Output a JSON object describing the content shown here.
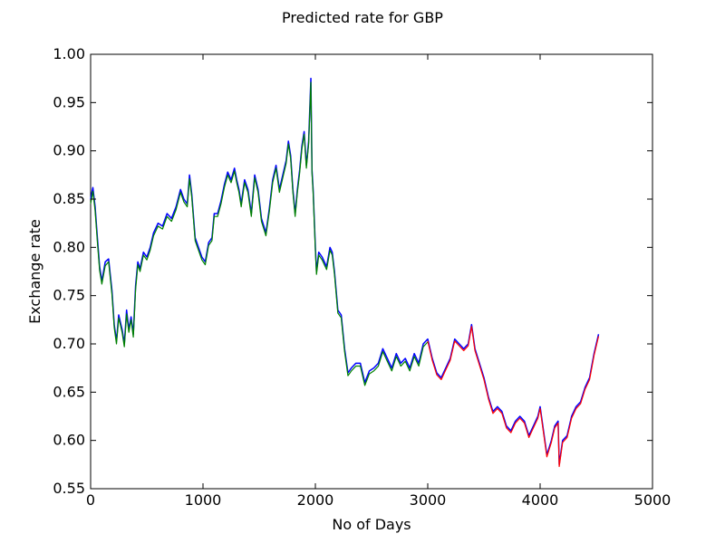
{
  "chart_data": {
    "type": "line",
    "title": "Predicted rate for GBP",
    "xlabel": "No of Days",
    "ylabel": "Exchange rate",
    "xlim": [
      0,
      5000
    ],
    "ylim": [
      0.55,
      1.0
    ],
    "xticks": [
      0,
      1000,
      2000,
      3000,
      4000,
      5000
    ],
    "yticks": [
      0.55,
      0.6,
      0.65,
      0.7,
      0.75,
      0.8,
      0.85,
      0.9,
      0.95,
      1.0
    ],
    "xtick_labels": [
      "0",
      "1000",
      "2000",
      "3000",
      "4000",
      "5000"
    ],
    "ytick_labels": [
      "0.55",
      "0.60",
      "0.65",
      "0.70",
      "0.75",
      "0.80",
      "0.85",
      "0.90",
      "0.95",
      "1.00"
    ],
    "grid": false,
    "legend": "none",
    "series": [
      {
        "color": "#0000ff",
        "values": [
          [
            0,
            0.85
          ],
          [
            20,
            0.862
          ],
          [
            40,
            0.842
          ],
          [
            60,
            0.81
          ],
          [
            80,
            0.78
          ],
          [
            100,
            0.765
          ],
          [
            130,
            0.785
          ],
          [
            160,
            0.788
          ],
          [
            190,
            0.755
          ],
          [
            210,
            0.72
          ],
          [
            230,
            0.703
          ],
          [
            250,
            0.73
          ],
          [
            280,
            0.715
          ],
          [
            300,
            0.7
          ],
          [
            320,
            0.735
          ],
          [
            340,
            0.715
          ],
          [
            360,
            0.728
          ],
          [
            380,
            0.71
          ],
          [
            400,
            0.76
          ],
          [
            420,
            0.785
          ],
          [
            440,
            0.778
          ],
          [
            470,
            0.795
          ],
          [
            500,
            0.79
          ],
          [
            530,
            0.8
          ],
          [
            560,
            0.815
          ],
          [
            600,
            0.825
          ],
          [
            640,
            0.822
          ],
          [
            680,
            0.835
          ],
          [
            720,
            0.83
          ],
          [
            760,
            0.842
          ],
          [
            800,
            0.86
          ],
          [
            830,
            0.85
          ],
          [
            860,
            0.845
          ],
          [
            880,
            0.875
          ],
          [
            900,
            0.855
          ],
          [
            930,
            0.81
          ],
          [
            960,
            0.8
          ],
          [
            990,
            0.79
          ],
          [
            1020,
            0.785
          ],
          [
            1050,
            0.805
          ],
          [
            1080,
            0.81
          ],
          [
            1100,
            0.835
          ],
          [
            1130,
            0.835
          ],
          [
            1160,
            0.848
          ],
          [
            1190,
            0.865
          ],
          [
            1220,
            0.878
          ],
          [
            1250,
            0.87
          ],
          [
            1280,
            0.882
          ],
          [
            1300,
            0.87
          ],
          [
            1320,
            0.86
          ],
          [
            1340,
            0.845
          ],
          [
            1370,
            0.87
          ],
          [
            1400,
            0.86
          ],
          [
            1430,
            0.835
          ],
          [
            1460,
            0.875
          ],
          [
            1490,
            0.86
          ],
          [
            1520,
            0.83
          ],
          [
            1560,
            0.815
          ],
          [
            1590,
            0.84
          ],
          [
            1620,
            0.87
          ],
          [
            1650,
            0.885
          ],
          [
            1680,
            0.86
          ],
          [
            1710,
            0.875
          ],
          [
            1740,
            0.89
          ],
          [
            1760,
            0.91
          ],
          [
            1780,
            0.895
          ],
          [
            1800,
            0.86
          ],
          [
            1820,
            0.835
          ],
          [
            1840,
            0.86
          ],
          [
            1860,
            0.88
          ],
          [
            1880,
            0.905
          ],
          [
            1900,
            0.92
          ],
          [
            1920,
            0.885
          ],
          [
            1940,
            0.91
          ],
          [
            1960,
            0.975
          ],
          [
            1970,
            0.88
          ],
          [
            1980,
            0.86
          ],
          [
            2000,
            0.8
          ],
          [
            2010,
            0.775
          ],
          [
            2030,
            0.795
          ],
          [
            2060,
            0.79
          ],
          [
            2100,
            0.78
          ],
          [
            2130,
            0.8
          ],
          [
            2150,
            0.795
          ],
          [
            2170,
            0.775
          ],
          [
            2200,
            0.735
          ],
          [
            2230,
            0.73
          ],
          [
            2260,
            0.695
          ],
          [
            2290,
            0.67
          ],
          [
            2320,
            0.675
          ],
          [
            2360,
            0.68
          ],
          [
            2400,
            0.68
          ],
          [
            2440,
            0.66
          ],
          [
            2480,
            0.672
          ],
          [
            2520,
            0.675
          ],
          [
            2560,
            0.68
          ],
          [
            2600,
            0.695
          ],
          [
            2640,
            0.685
          ],
          [
            2680,
            0.675
          ],
          [
            2720,
            0.69
          ],
          [
            2760,
            0.68
          ],
          [
            2800,
            0.685
          ],
          [
            2840,
            0.675
          ],
          [
            2880,
            0.69
          ],
          [
            2920,
            0.68
          ],
          [
            2960,
            0.7
          ],
          [
            3000,
            0.705
          ],
          [
            3040,
            0.685
          ],
          [
            3080,
            0.67
          ],
          [
            3120,
            0.665
          ],
          [
            3160,
            0.675
          ],
          [
            3200,
            0.685
          ],
          [
            3240,
            0.705
          ],
          [
            3280,
            0.7
          ],
          [
            3320,
            0.695
          ],
          [
            3360,
            0.7
          ],
          [
            3390,
            0.72
          ],
          [
            3420,
            0.695
          ],
          [
            3460,
            0.68
          ],
          [
            3500,
            0.665
          ],
          [
            3540,
            0.645
          ],
          [
            3580,
            0.63
          ],
          [
            3620,
            0.635
          ],
          [
            3660,
            0.63
          ],
          [
            3700,
            0.615
          ],
          [
            3740,
            0.61
          ],
          [
            3780,
            0.62
          ],
          [
            3820,
            0.625
          ],
          [
            3860,
            0.62
          ],
          [
            3900,
            0.605
          ],
          [
            3940,
            0.615
          ],
          [
            3980,
            0.625
          ],
          [
            4000,
            0.635
          ],
          [
            4030,
            0.61
          ],
          [
            4060,
            0.585
          ],
          [
            4100,
            0.6
          ],
          [
            4130,
            0.615
          ],
          [
            4160,
            0.62
          ],
          [
            4170,
            0.575
          ],
          [
            4200,
            0.6
          ],
          [
            4240,
            0.605
          ],
          [
            4280,
            0.625
          ],
          [
            4320,
            0.635
          ],
          [
            4360,
            0.64
          ],
          [
            4400,
            0.655
          ],
          [
            4440,
            0.665
          ],
          [
            4480,
            0.69
          ],
          [
            4520,
            0.71
          ]
        ]
      },
      {
        "color": "#008000",
        "values": [
          [
            0,
            0.845
          ],
          [
            20,
            0.858
          ],
          [
            40,
            0.838
          ],
          [
            60,
            0.806
          ],
          [
            80,
            0.776
          ],
          [
            100,
            0.762
          ],
          [
            130,
            0.781
          ],
          [
            160,
            0.785
          ],
          [
            190,
            0.751
          ],
          [
            210,
            0.717
          ],
          [
            230,
            0.7
          ],
          [
            250,
            0.727
          ],
          [
            280,
            0.712
          ],
          [
            300,
            0.697
          ],
          [
            320,
            0.731
          ],
          [
            340,
            0.712
          ],
          [
            360,
            0.725
          ],
          [
            380,
            0.707
          ],
          [
            400,
            0.756
          ],
          [
            420,
            0.782
          ],
          [
            440,
            0.775
          ],
          [
            470,
            0.792
          ],
          [
            500,
            0.787
          ],
          [
            530,
            0.797
          ],
          [
            560,
            0.812
          ],
          [
            600,
            0.822
          ],
          [
            640,
            0.819
          ],
          [
            680,
            0.832
          ],
          [
            720,
            0.827
          ],
          [
            760,
            0.839
          ],
          [
            800,
            0.857
          ],
          [
            830,
            0.847
          ],
          [
            860,
            0.842
          ],
          [
            880,
            0.871
          ],
          [
            900,
            0.852
          ],
          [
            930,
            0.807
          ],
          [
            960,
            0.797
          ],
          [
            990,
            0.787
          ],
          [
            1020,
            0.782
          ],
          [
            1050,
            0.802
          ],
          [
            1080,
            0.807
          ],
          [
            1100,
            0.832
          ],
          [
            1130,
            0.832
          ],
          [
            1160,
            0.845
          ],
          [
            1190,
            0.862
          ],
          [
            1220,
            0.875
          ],
          [
            1250,
            0.867
          ],
          [
            1280,
            0.879
          ],
          [
            1300,
            0.867
          ],
          [
            1320,
            0.857
          ],
          [
            1340,
            0.842
          ],
          [
            1370,
            0.867
          ],
          [
            1400,
            0.857
          ],
          [
            1430,
            0.832
          ],
          [
            1460,
            0.872
          ],
          [
            1490,
            0.857
          ],
          [
            1520,
            0.827
          ],
          [
            1560,
            0.812
          ],
          [
            1590,
            0.837
          ],
          [
            1620,
            0.867
          ],
          [
            1650,
            0.882
          ],
          [
            1680,
            0.857
          ],
          [
            1710,
            0.872
          ],
          [
            1740,
            0.887
          ],
          [
            1760,
            0.907
          ],
          [
            1780,
            0.892
          ],
          [
            1800,
            0.857
          ],
          [
            1820,
            0.832
          ],
          [
            1840,
            0.857
          ],
          [
            1860,
            0.877
          ],
          [
            1880,
            0.902
          ],
          [
            1900,
            0.917
          ],
          [
            1920,
            0.882
          ],
          [
            1940,
            0.907
          ],
          [
            1960,
            0.971
          ],
          [
            1970,
            0.877
          ],
          [
            1980,
            0.857
          ],
          [
            2000,
            0.797
          ],
          [
            2010,
            0.772
          ],
          [
            2030,
            0.792
          ],
          [
            2060,
            0.787
          ],
          [
            2100,
            0.777
          ],
          [
            2130,
            0.797
          ],
          [
            2150,
            0.792
          ],
          [
            2170,
            0.772
          ],
          [
            2200,
            0.732
          ],
          [
            2230,
            0.727
          ],
          [
            2260,
            0.692
          ],
          [
            2290,
            0.667
          ],
          [
            2320,
            0.672
          ],
          [
            2360,
            0.677
          ],
          [
            2400,
            0.677
          ],
          [
            2440,
            0.657
          ],
          [
            2480,
            0.669
          ],
          [
            2520,
            0.672
          ],
          [
            2560,
            0.677
          ],
          [
            2600,
            0.692
          ],
          [
            2640,
            0.682
          ],
          [
            2680,
            0.672
          ],
          [
            2720,
            0.687
          ],
          [
            2760,
            0.677
          ],
          [
            2800,
            0.682
          ],
          [
            2840,
            0.672
          ],
          [
            2880,
            0.687
          ],
          [
            2920,
            0.677
          ],
          [
            2960,
            0.697
          ],
          [
            3000,
            0.702
          ]
        ]
      },
      {
        "color": "#ff0000",
        "values": [
          [
            3000,
            0.703
          ],
          [
            3040,
            0.683
          ],
          [
            3080,
            0.668
          ],
          [
            3120,
            0.663
          ],
          [
            3160,
            0.673
          ],
          [
            3200,
            0.683
          ],
          [
            3240,
            0.703
          ],
          [
            3280,
            0.698
          ],
          [
            3320,
            0.693
          ],
          [
            3360,
            0.698
          ],
          [
            3390,
            0.718
          ],
          [
            3420,
            0.693
          ],
          [
            3460,
            0.678
          ],
          [
            3500,
            0.663
          ],
          [
            3540,
            0.643
          ],
          [
            3580,
            0.628
          ],
          [
            3620,
            0.633
          ],
          [
            3660,
            0.628
          ],
          [
            3700,
            0.613
          ],
          [
            3740,
            0.608
          ],
          [
            3780,
            0.618
          ],
          [
            3820,
            0.623
          ],
          [
            3860,
            0.618
          ],
          [
            3900,
            0.603
          ],
          [
            3940,
            0.613
          ],
          [
            3980,
            0.623
          ],
          [
            4000,
            0.633
          ],
          [
            4030,
            0.608
          ],
          [
            4060,
            0.583
          ],
          [
            4100,
            0.598
          ],
          [
            4130,
            0.613
          ],
          [
            4160,
            0.618
          ],
          [
            4170,
            0.573
          ],
          [
            4200,
            0.598
          ],
          [
            4240,
            0.603
          ],
          [
            4280,
            0.623
          ],
          [
            4320,
            0.633
          ],
          [
            4360,
            0.638
          ],
          [
            4400,
            0.653
          ],
          [
            4440,
            0.663
          ],
          [
            4480,
            0.688
          ],
          [
            4520,
            0.708
          ]
        ]
      }
    ]
  }
}
